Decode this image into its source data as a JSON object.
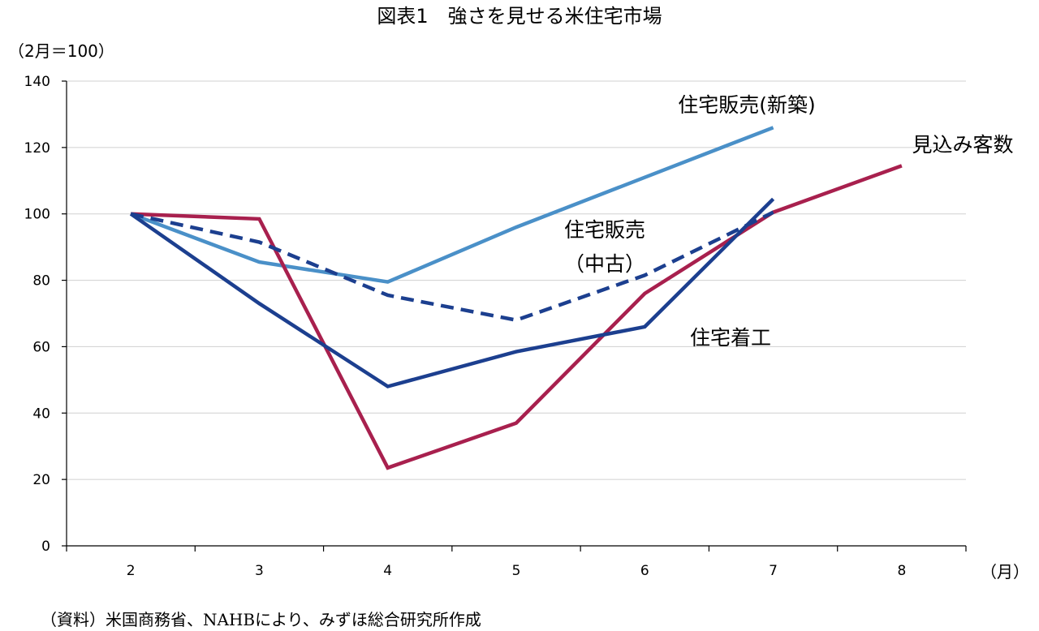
{
  "chart_data": {
    "type": "line",
    "title": "図表1　強さを見せる米住宅市場",
    "ylabel": "（2月＝100）",
    "xlabel": "（月）",
    "ylim": [
      0,
      140
    ],
    "yticks": [
      0,
      20,
      40,
      60,
      80,
      100,
      120,
      140
    ],
    "categories": [
      "2",
      "3",
      "4",
      "5",
      "6",
      "7",
      "8"
    ],
    "grid": true,
    "series": [
      {
        "name": "住宅販売(新築)",
        "color": "#4a90c8",
        "dashed": false,
        "values": [
          100,
          85.5,
          79.5,
          96,
          111,
          126,
          null
        ]
      },
      {
        "name": "住宅販売（中古）",
        "color": "#1c3f8f",
        "dashed": true,
        "values": [
          100,
          91.5,
          75.5,
          68,
          81.5,
          100.5,
          null
        ]
      },
      {
        "name": "住宅着工",
        "color": "#1c3f8f",
        "dashed": false,
        "values": [
          100,
          73,
          48,
          58.5,
          66,
          104.5,
          null
        ]
      },
      {
        "name": "見込み客数",
        "color": "#a8204e",
        "dashed": false,
        "values": [
          100,
          98.5,
          23.5,
          37,
          76,
          100.5,
          114.5
        ]
      }
    ],
    "annotations": [
      {
        "series": 0,
        "text": "住宅販売(新築)"
      },
      {
        "series": 1,
        "text": "住宅販売",
        "text2": "（中古）"
      },
      {
        "series": 2,
        "text": "住宅着工"
      },
      {
        "series": 3,
        "text": "見込み客数"
      }
    ]
  },
  "source": "（資料）米国商務省、NAHBにより、みずほ総合研究所作成"
}
